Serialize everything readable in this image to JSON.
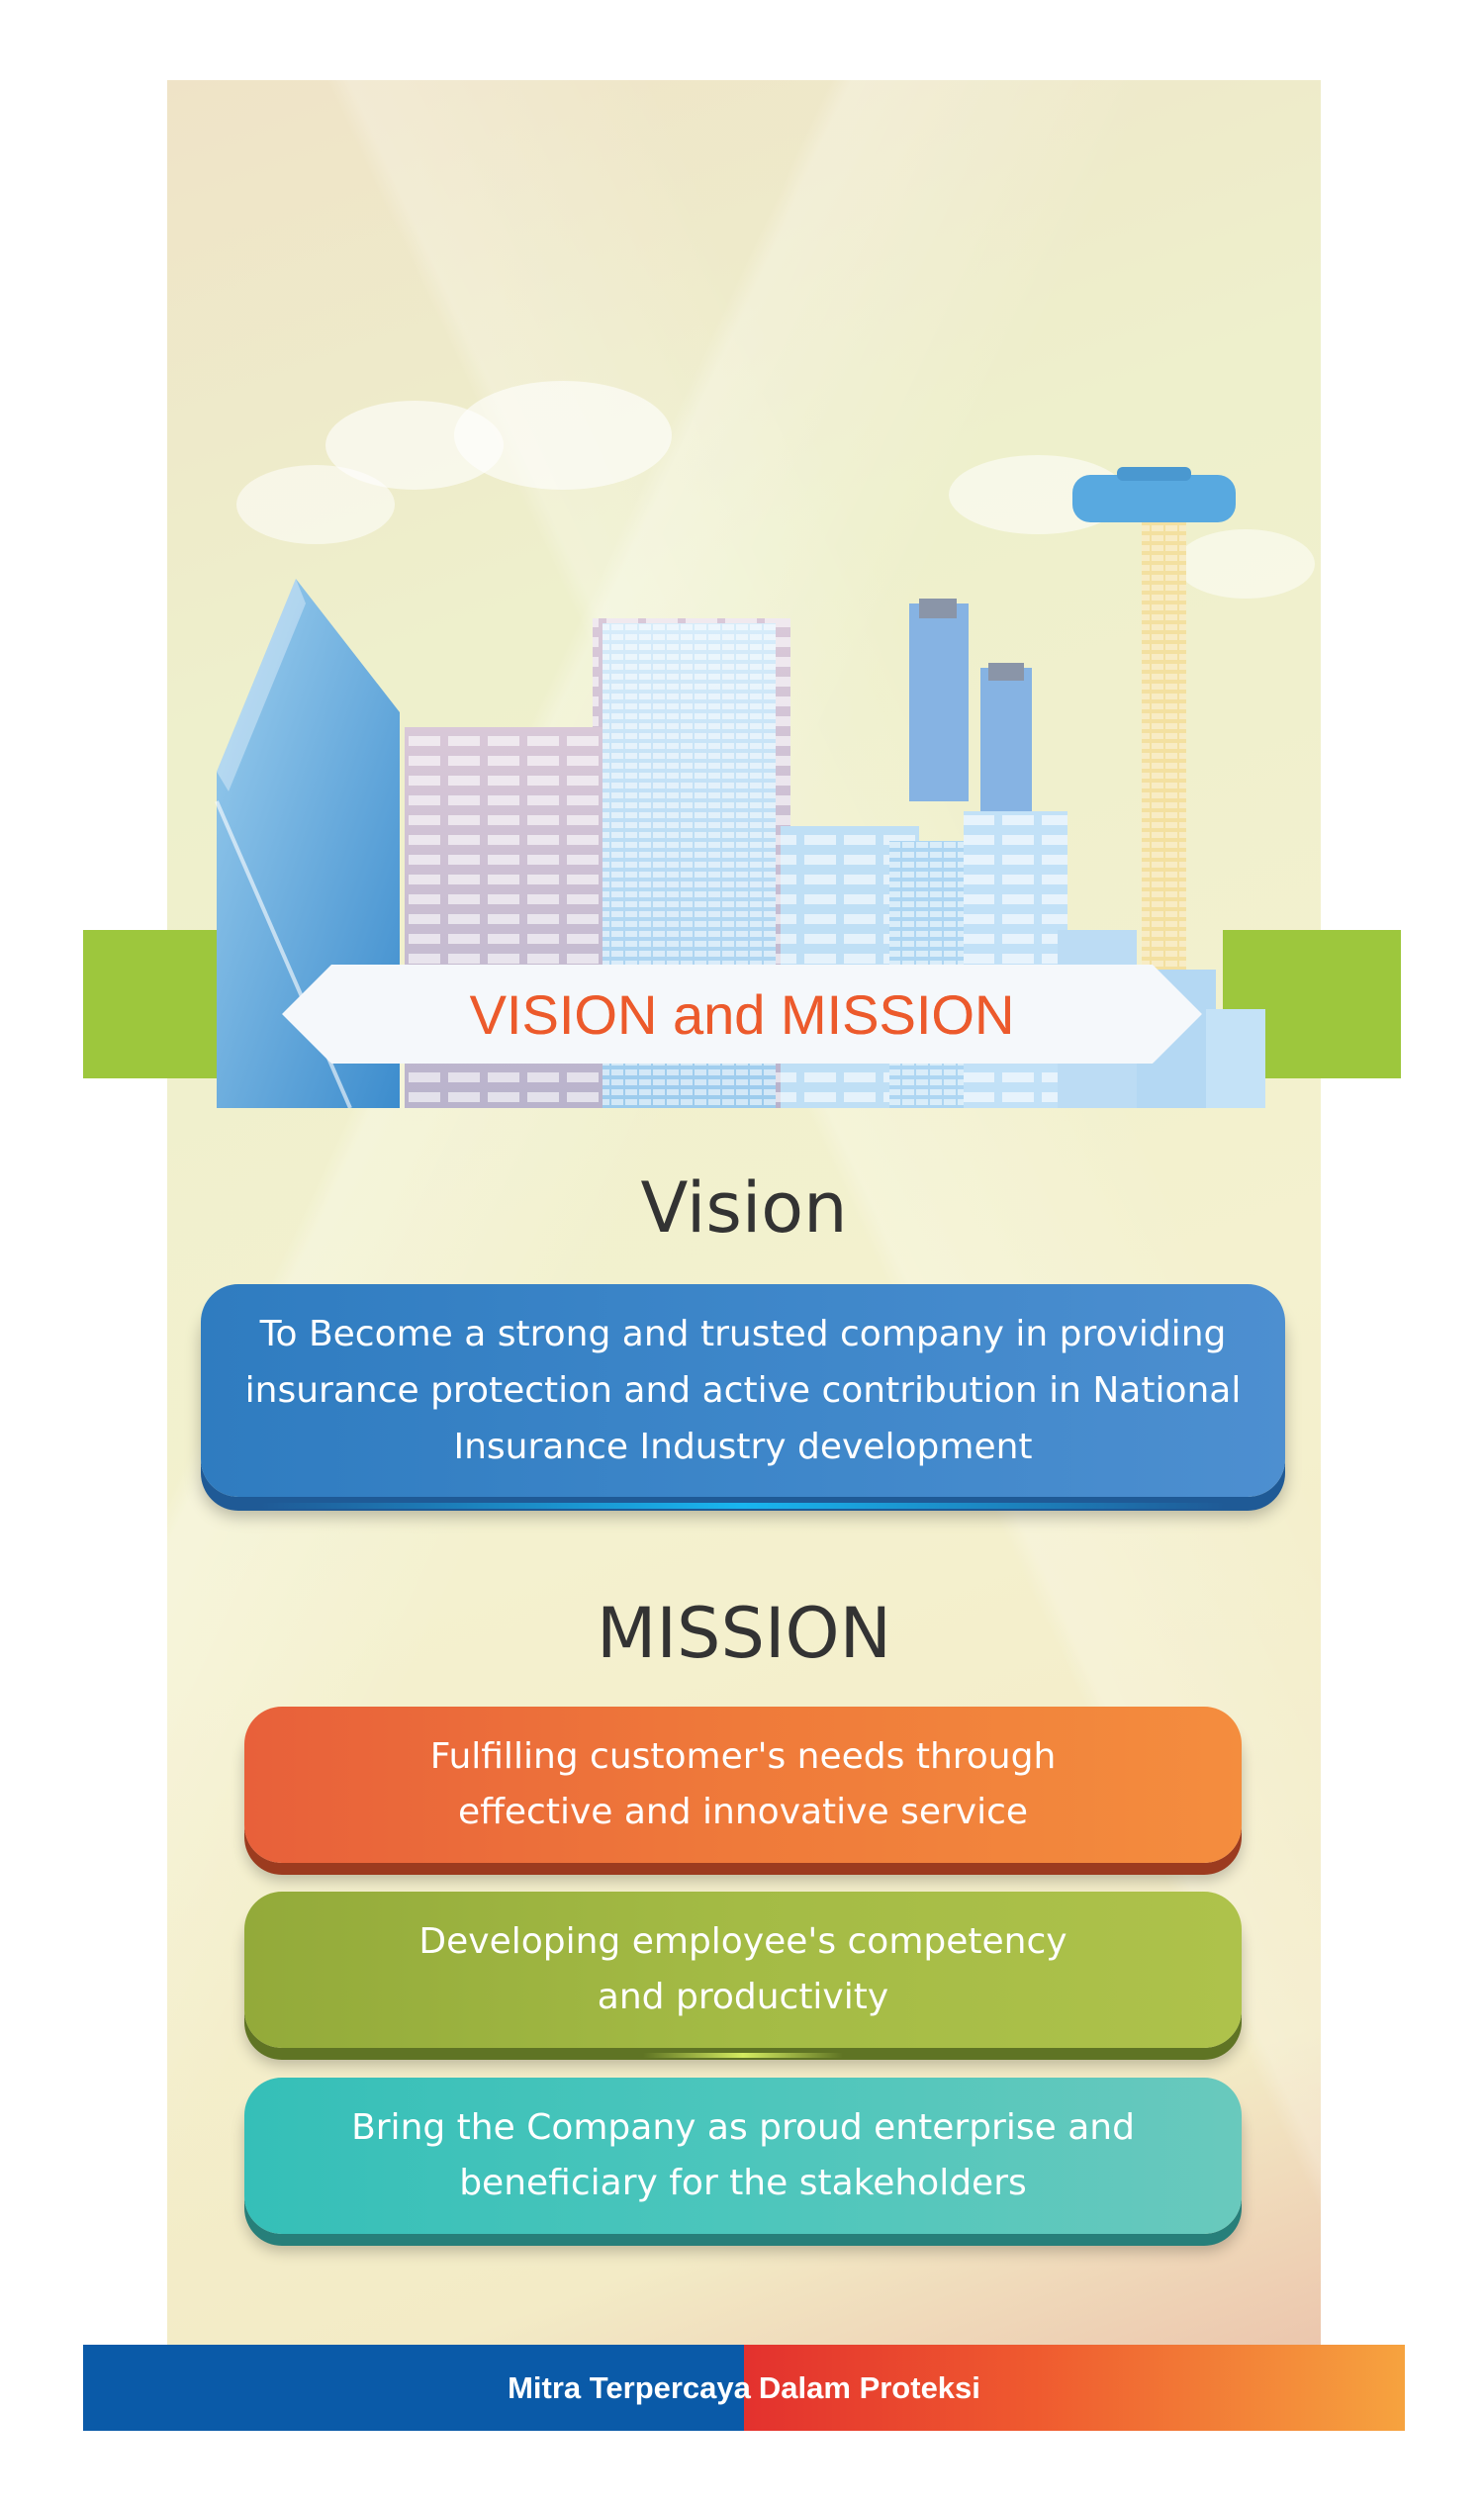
{
  "banner": {
    "title": "VISION and MISSION"
  },
  "vision": {
    "heading": "Vision",
    "lines": [
      "To Become a strong and trusted company in providing",
      "insurance protection and active contribution in National",
      "Insurance Industry development"
    ]
  },
  "mission": {
    "heading": "MISSION",
    "items": [
      {
        "lines": [
          "Fulfilling customer's needs through",
          "effective and innovative service"
        ],
        "color": "#ef7a3a"
      },
      {
        "lines": [
          "Developing employee's competency",
          "and productivity"
        ],
        "color": "#a4bb45"
      },
      {
        "lines": [
          "Bring the Company as proud enterprise and",
          "beneficiary for the stakeholders"
        ],
        "color": "#4cc6bc"
      }
    ]
  },
  "footer": {
    "left": "Mitra Terpercaya",
    "right": "Dalam Proteksi"
  },
  "colors": {
    "accent_blue": "#0a5aa8",
    "accent_red": "#e3312e",
    "accent_green": "#9dc73d",
    "accent_orange": "#f6a33f"
  }
}
